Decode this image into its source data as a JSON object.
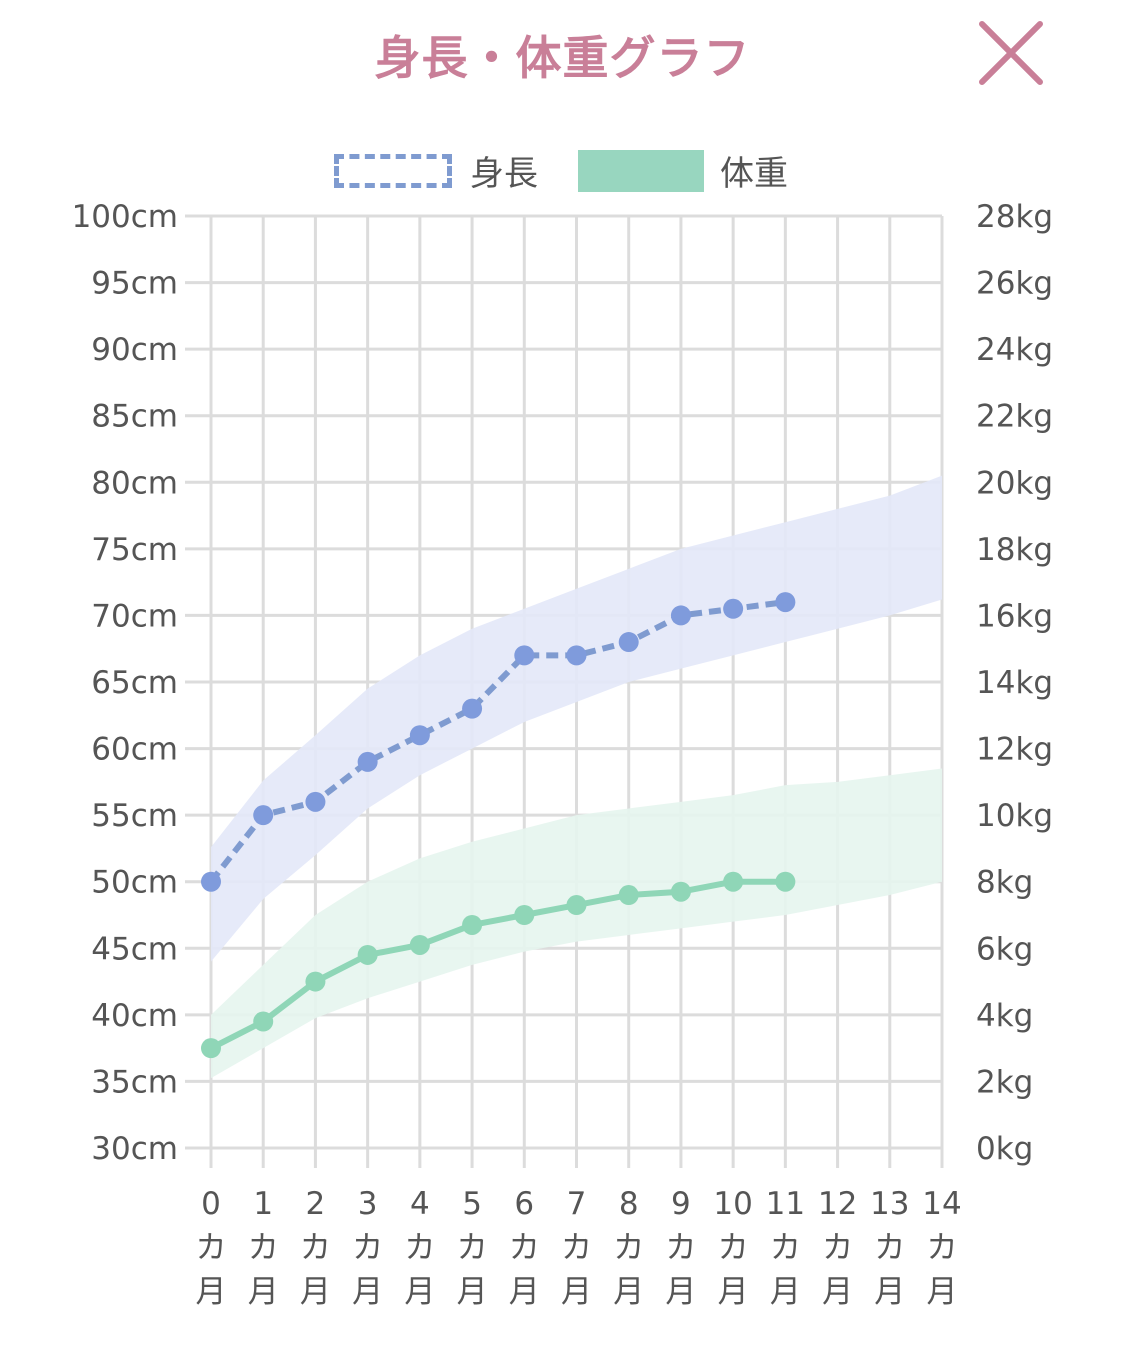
{
  "header": {
    "title": "身長・体重グラフ",
    "close_icon": "close-icon"
  },
  "colors": {
    "title": "#c97f98",
    "height_line": "#7f9bd0",
    "height_point": "#7f9bdc",
    "height_band": "#e3e8f8",
    "weight_line": "#8fd6b7",
    "weight_band": "#e6f5ee",
    "grid": "#dcdcdc"
  },
  "chart_data": {
    "type": "line",
    "title": "身長・体重グラフ",
    "legend": [
      "身長",
      "体重"
    ],
    "legend_position": "top-center",
    "x": [
      0,
      1,
      2,
      3,
      4,
      5,
      6,
      7,
      8,
      9,
      10,
      11,
      12,
      13,
      14
    ],
    "x_tick_labels": [
      "0",
      "1",
      "2",
      "3",
      "4",
      "5",
      "6",
      "7",
      "8",
      "9",
      "10",
      "11",
      "12",
      "13",
      "14"
    ],
    "x_unit_labels": [
      "カ",
      "月"
    ],
    "xlim": [
      0,
      14
    ],
    "y_left": {
      "label": "cm",
      "ylim": [
        30,
        100
      ],
      "ticks": [
        "100cm",
        "95cm",
        "90cm",
        "85cm",
        "80cm",
        "75cm",
        "70cm",
        "65cm",
        "60cm",
        "55cm",
        "50cm",
        "45cm",
        "40cm",
        "35cm",
        "30cm"
      ],
      "tick_values": [
        100,
        95,
        90,
        85,
        80,
        75,
        70,
        65,
        60,
        55,
        50,
        45,
        40,
        35,
        30
      ]
    },
    "y_right": {
      "label": "kg",
      "ylim": [
        0,
        28
      ],
      "ticks": [
        "28kg",
        "26kg",
        "24kg",
        "22kg",
        "20kg",
        "18kg",
        "16kg",
        "14kg",
        "12kg",
        "10kg",
        "8kg",
        "6kg",
        "4kg",
        "2kg",
        "0kg"
      ],
      "tick_values": [
        28,
        26,
        24,
        22,
        20,
        18,
        16,
        14,
        12,
        10,
        8,
        6,
        4,
        2,
        0
      ]
    },
    "grid": true,
    "series": [
      {
        "name": "身長",
        "axis": "left",
        "style": "dashed",
        "x": [
          0,
          1,
          2,
          3,
          4,
          5,
          6,
          7,
          8,
          9,
          10,
          11
        ],
        "values": [
          50,
          55,
          56,
          59,
          61,
          63,
          67,
          67,
          68,
          70,
          70.5,
          71
        ]
      },
      {
        "name": "体重",
        "axis": "right",
        "style": "solid",
        "x": [
          0,
          1,
          2,
          3,
          4,
          5,
          6,
          7,
          8,
          9,
          10,
          11
        ],
        "values": [
          3.0,
          3.8,
          5.0,
          5.8,
          6.1,
          6.7,
          7.0,
          7.3,
          7.6,
          7.7,
          8.0,
          8.0
        ]
      }
    ],
    "bands": [
      {
        "name": "身長 reference range",
        "axis": "left",
        "lower": [
          44,
          48.7,
          52,
          55.5,
          58,
          60,
          62,
          63.5,
          65,
          66,
          67,
          68,
          69,
          70,
          71.2
        ],
        "upper": [
          52.6,
          57.6,
          61,
          64.5,
          67,
          69,
          70.5,
          72,
          73.5,
          75,
          76,
          77,
          78,
          79,
          80.5
        ]
      },
      {
        "name": "体重 reference range",
        "axis": "right",
        "lower": [
          2.1,
          3.0,
          3.9,
          4.5,
          5.0,
          5.5,
          5.9,
          6.2,
          6.4,
          6.6,
          6.8,
          7.0,
          7.3,
          7.6,
          8.0
        ],
        "upper": [
          4.0,
          5.5,
          7.0,
          8.0,
          8.7,
          9.2,
          9.6,
          10.0,
          10.2,
          10.4,
          10.6,
          10.9,
          11.0,
          11.2,
          11.4
        ]
      }
    ]
  }
}
